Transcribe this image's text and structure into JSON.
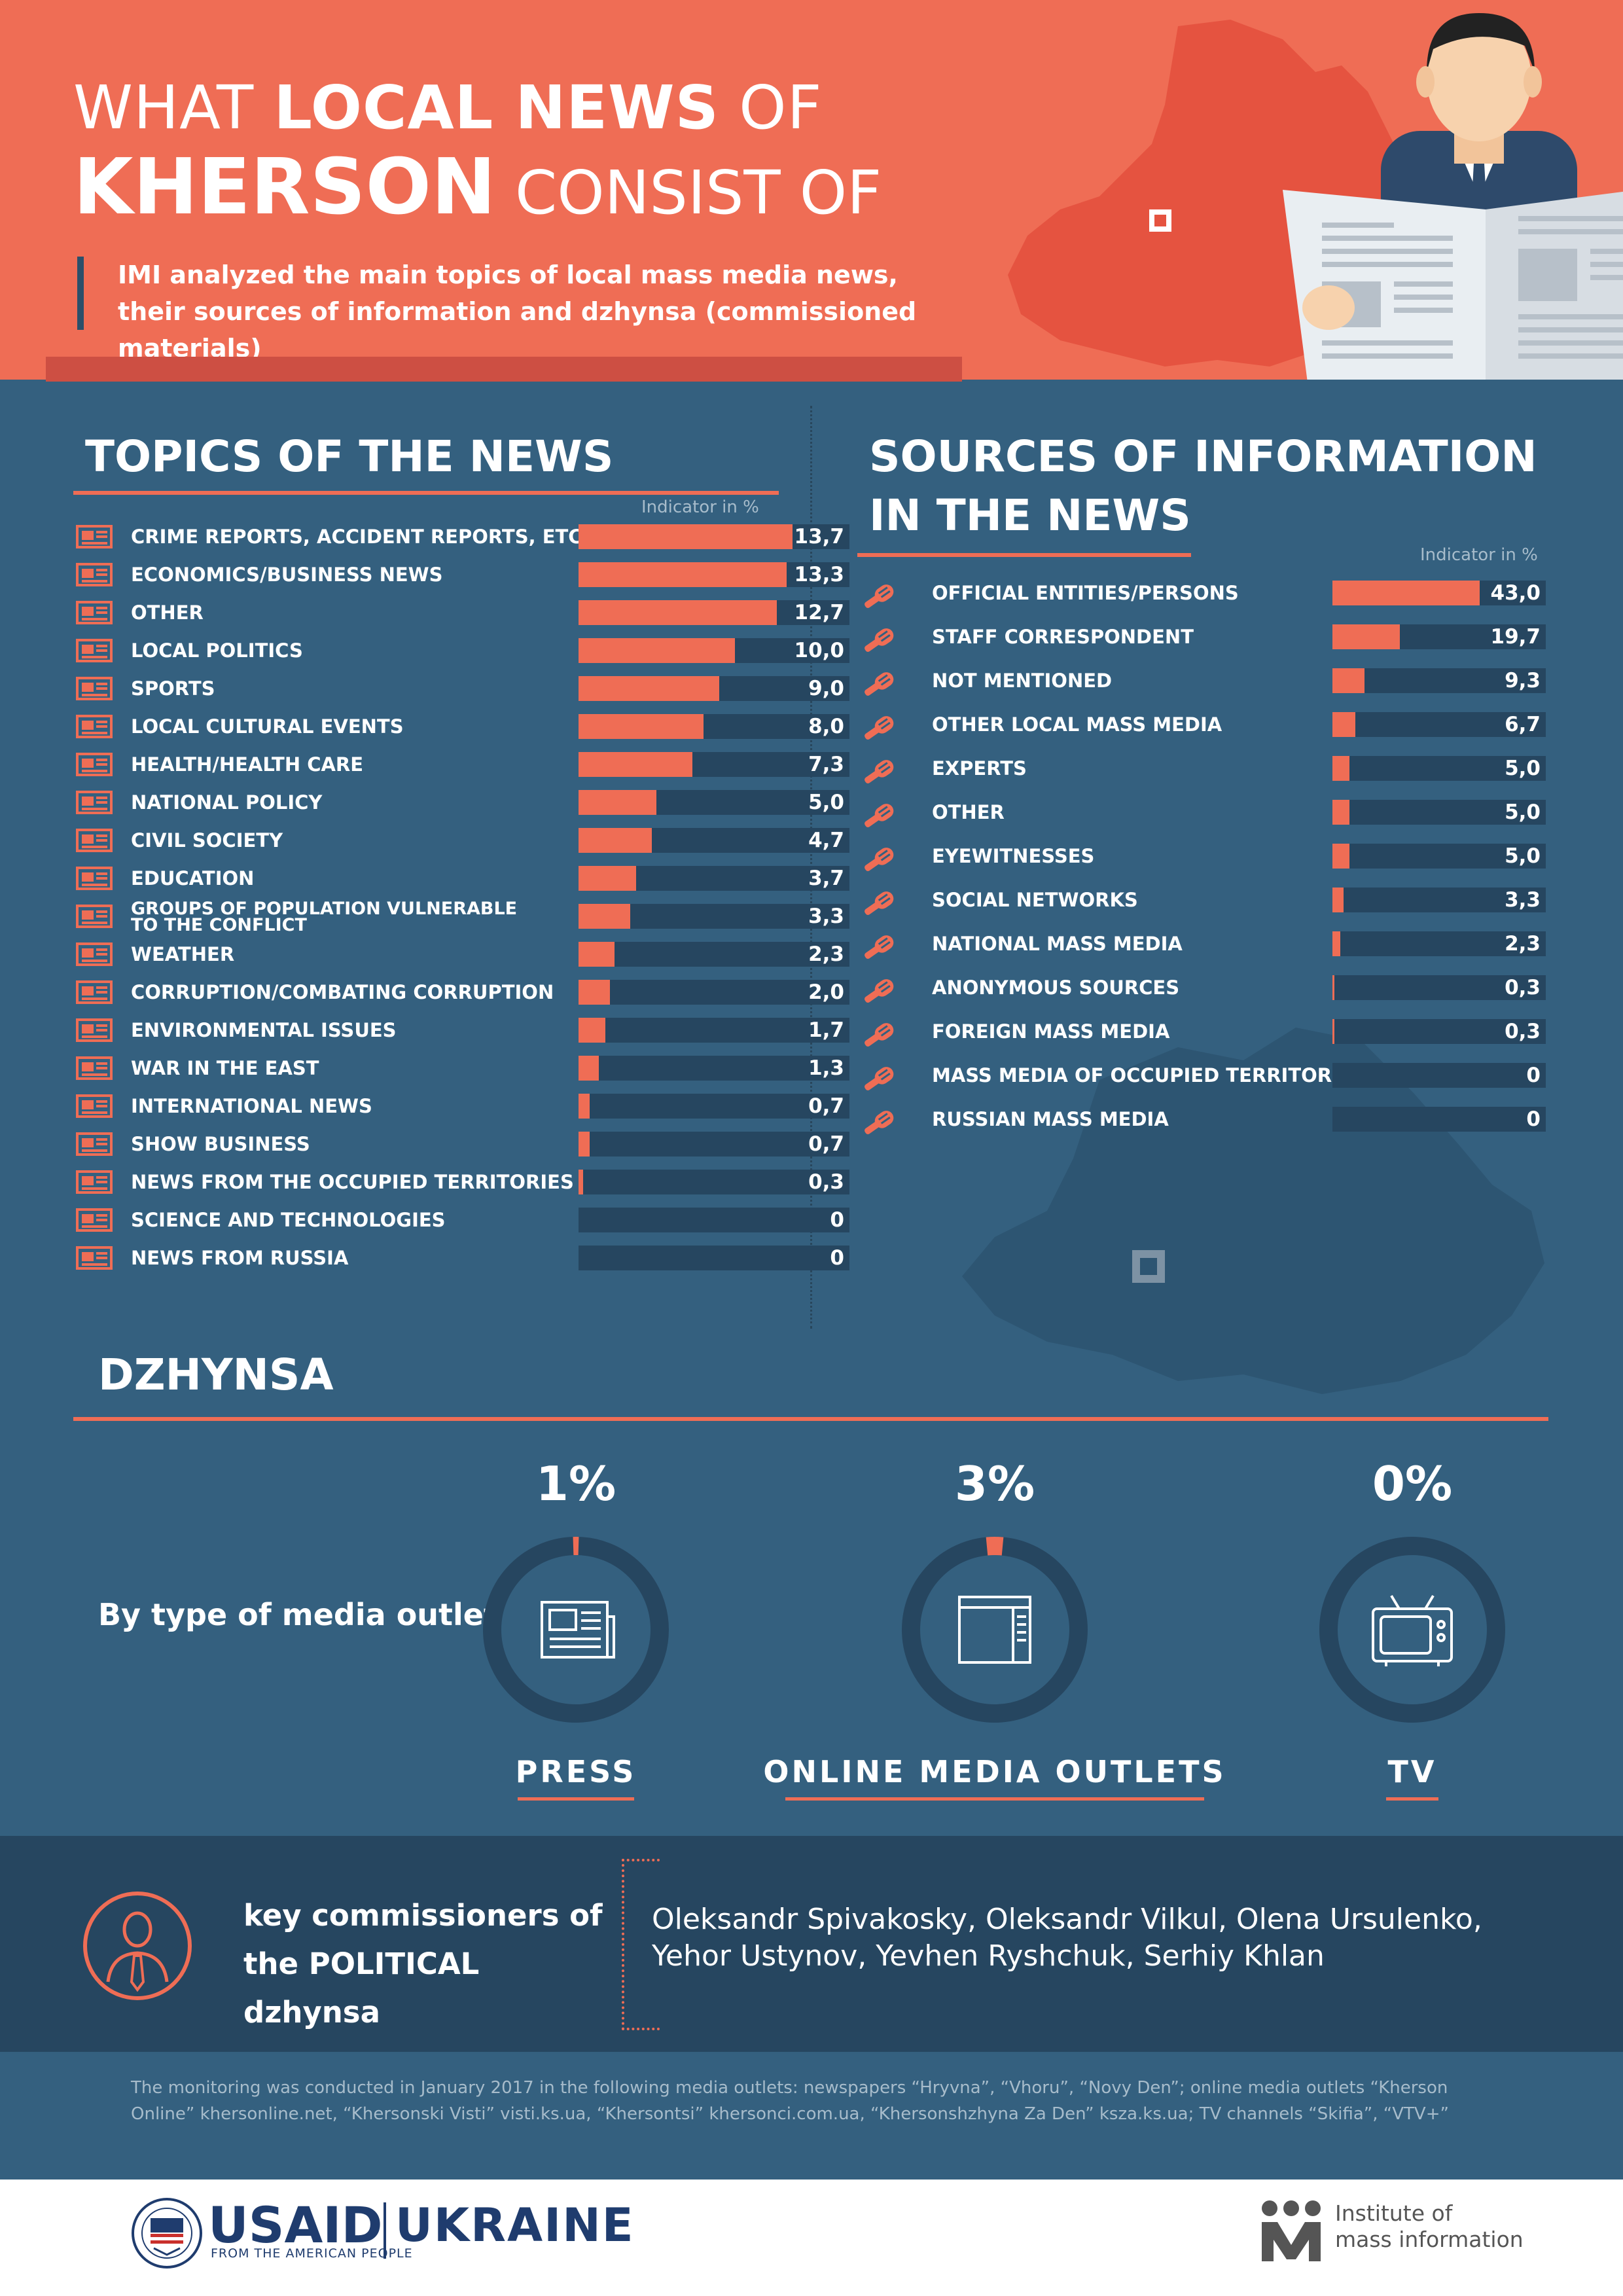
{
  "header": {
    "title_line1_pre": "WHAT ",
    "title_line1_bold": "LOCAL NEWS",
    "title_line1_post": " OF",
    "title_line2_bold": "KHERSON",
    "title_line2_post": " CONSIST OF",
    "subtitle": "IMI analyzed the main topics of local mass media news, their sources of information and dzhynsa (commissioned materials)"
  },
  "topics": {
    "title": "TOPICS OF THE NEWS",
    "indicator_label": "Indicator in %"
  },
  "sources": {
    "title_line1": "SOURCES OF INFORMATION",
    "title_line2": "IN THE NEWS",
    "indicator_label": "Indicator in %"
  },
  "chart_data": [
    {
      "type": "bar",
      "title": "TOPICS OF THE NEWS",
      "value_unit": "Indicator in %",
      "xlim": [
        0,
        13.7
      ],
      "categories": [
        "CRIME REPORTS, ACCIDENT REPORTS, ETC.",
        "ECONOMICS/BUSINESS NEWS",
        "OTHER",
        "LOCAL POLITICS",
        "SPORTS",
        "LOCAL CULTURAL EVENTS",
        "HEALTH/HEALTH CARE",
        "NATIONAL POLICY",
        "CIVIL SOCIETY",
        "EDUCATION",
        "GROUPS OF POPULATION VULNERABLE TO THE CONFLICT",
        "WEATHER",
        "CORRUPTION/COMBATING CORRUPTION",
        "ENVIRONMENTAL ISSUES",
        "WAR IN THE EAST",
        "INTERNATIONAL NEWS",
        "SHOW BUSINESS",
        "NEWS FROM THE OCCUPIED TERRITORIES",
        "SCIENCE AND TECHNOLOGIES",
        "NEWS FROM RUSSIA"
      ],
      "values": [
        13.7,
        13.3,
        12.7,
        10.0,
        9.0,
        8.0,
        7.3,
        5.0,
        4.7,
        3.7,
        3.3,
        2.3,
        2.0,
        1.7,
        1.3,
        0.7,
        0.7,
        0.3,
        0,
        0
      ],
      "value_labels": [
        "13,7",
        "13,3",
        "12,7",
        "10,0",
        "9,0",
        "8,0",
        "7,3",
        "5,0",
        "4,7",
        "3,7",
        "3,3",
        "2,3",
        "2,0",
        "1,7",
        "1,3",
        "0,7",
        "0,7",
        "0,3",
        "0",
        "0"
      ],
      "colors": {
        "fill": "#ef6d55",
        "track": "#264660"
      }
    },
    {
      "type": "bar",
      "title": "SOURCES OF INFORMATION IN THE NEWS",
      "value_unit": "Indicator in %",
      "xlim": [
        0,
        43.0
      ],
      "categories": [
        "OFFICIAL ENTITIES/PERSONS",
        "STAFF CORRESPONDENT",
        "NOT MENTIONED",
        "OTHER LOCAL MASS MEDIA",
        "EXPERTS",
        "OTHER",
        "EYEWITNESSES",
        "SOCIAL NETWORKS",
        "NATIONAL MASS MEDIA",
        "ANONYMOUS SOURCES",
        "FOREIGN MASS MEDIA",
        "MASS MEDIA OF OCCUPIED TERRITORIES",
        "RUSSIAN MASS MEDIA"
      ],
      "values": [
        43.0,
        19.7,
        9.3,
        6.7,
        5.0,
        5.0,
        5.0,
        3.3,
        2.3,
        0.3,
        0.3,
        0,
        0
      ],
      "value_labels": [
        "43,0",
        "19,7",
        "9,3",
        "6,7",
        "5,0",
        "5,0",
        "5,0",
        "3,3",
        "2,3",
        "0,3",
        "0,3",
        "0",
        "0"
      ],
      "colors": {
        "fill": "#ef6d55",
        "track": "#264660"
      }
    },
    {
      "type": "pie",
      "title": "DZHYNSA",
      "subtitle": "By type of media outlet",
      "categories": [
        "PRESS",
        "ONLINE MEDIA OUTLETS",
        "TV"
      ],
      "values": [
        1,
        3,
        0
      ],
      "value_labels": [
        "1%",
        "3%",
        "0%"
      ],
      "colors": {
        "fill": "#ef6d55",
        "ring": "#264660"
      }
    }
  ],
  "dzhynsa": {
    "title": "DZHYNSA",
    "by_type_label": "By type of media outlet",
    "outlets": [
      {
        "label": "PRESS",
        "pct": "1%",
        "icon": "newspaper-icon"
      },
      {
        "label": "ONLINE MEDIA OUTLETS",
        "pct": "3%",
        "icon": "browser-window-icon"
      },
      {
        "label": "TV",
        "pct": "0%",
        "icon": "tv-icon"
      }
    ]
  },
  "commissioners": {
    "label_line1": "key commissioners of",
    "label_line2": "the POLITICAL dzhynsa",
    "names": "Oleksandr Spivakosky, Oleksandr Vilkul, Olena Ursulenko, Yehor Ustynov, Yevhen Ryshchuk, Serhiy Khlan"
  },
  "footnote": "The monitoring was conducted in January 2017 in the following media outlets: newspapers “Hryvna”, “Vhoru”, “Novy Den”; online media outlets “Kherson Online” khersonline.net, “Khersonski Visti” visti.ks.ua, “Khersontsi” khersonci.com.ua, “Khersonshzhyna Za Den” ksza.ks.ua; TV channels “Skifia”, “VTV+”",
  "footer": {
    "usaid": "USAID",
    "usaid_tagline": "FROM THE AMERICAN PEOPLE",
    "ukraine": "UKRAINE",
    "imi_line1": "Institute of",
    "imi_line2": "mass information"
  },
  "colors": {
    "coral": "#ef6d55",
    "navy": "#34607f",
    "dark_navy": "#264660",
    "header_red": "#e55340"
  }
}
